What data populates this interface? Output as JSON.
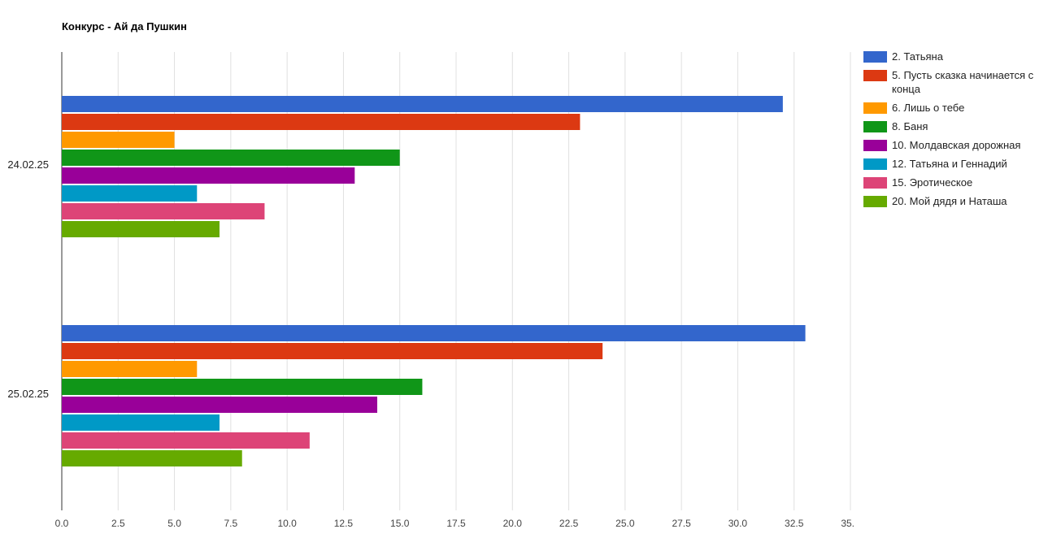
{
  "chart_data": {
    "type": "bar",
    "orientation": "horizontal",
    "title": "Конкурс - Ай да Пушкин",
    "categories": [
      "24.02.25",
      "25.02.25"
    ],
    "xlim": [
      0,
      35
    ],
    "xticks": [
      "0.0",
      "2.5",
      "5.0",
      "7.5",
      "10.0",
      "12.5",
      "15.0",
      "17.5",
      "20.0",
      "22.5",
      "25.0",
      "27.5",
      "30.0",
      "32.5",
      "35.0"
    ],
    "grid": true,
    "legend_position": "right",
    "series": [
      {
        "name": "2. Татьяна",
        "color": "#3366cc",
        "values": [
          32,
          33
        ]
      },
      {
        "name": "5. Пусть сказка начинается с конца",
        "color": "#dc3912",
        "values": [
          23,
          24
        ]
      },
      {
        "name": "6. Лишь о тебе",
        "color": "#ff9900",
        "values": [
          5,
          6
        ]
      },
      {
        "name": "8. Баня",
        "color": "#109618",
        "values": [
          15,
          16
        ]
      },
      {
        "name": "10. Молдавская дорожная",
        "color": "#990099",
        "values": [
          13,
          14
        ]
      },
      {
        "name": "12. Татьяна и Геннадий",
        "color": "#0099c6",
        "values": [
          6,
          7
        ]
      },
      {
        "name": "15. Эротическое",
        "color": "#dd4477",
        "values": [
          9,
          11
        ]
      },
      {
        "name": "20. Мой дядя и Наташа",
        "color": "#66aa00",
        "values": [
          7,
          8
        ]
      }
    ]
  }
}
